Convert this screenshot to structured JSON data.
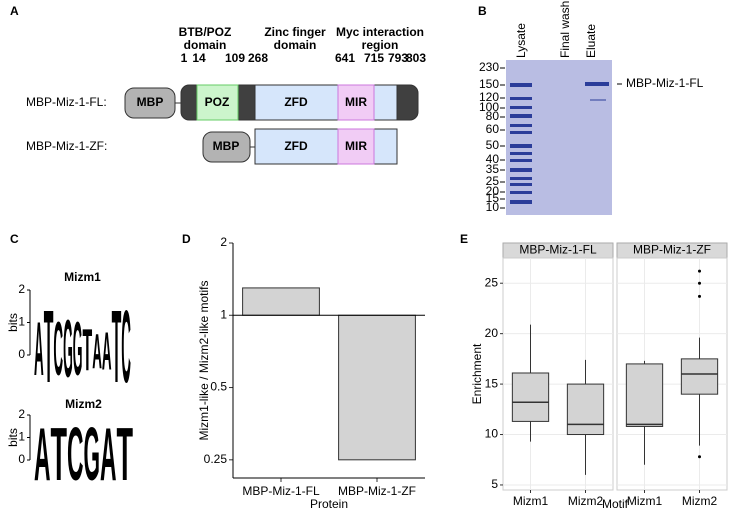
{
  "panel_a": {
    "label": "A",
    "headers": [
      [
        "BTB/POZ",
        "domain"
      ],
      [
        "Zinc finger",
        "domain"
      ],
      [
        "Myc interaction",
        "region"
      ]
    ],
    "residues": [
      1,
      14,
      109,
      268,
      641,
      715,
      793,
      803
    ],
    "constructs": [
      {
        "name": "MBP-Miz-1-FL:",
        "domains": [
          "MBP",
          "POZ",
          "ZFD",
          "MIR"
        ]
      },
      {
        "name": "MBP-Miz-1-ZF:",
        "domains": [
          "MBP",
          "ZFD",
          "MIR"
        ]
      }
    ]
  },
  "panel_b": {
    "label": "B",
    "lanes": [
      "Lysate",
      "Final wash",
      "Eluate"
    ],
    "markers": [
      230,
      150,
      120,
      100,
      80,
      60,
      50,
      40,
      35,
      25,
      20,
      15,
      10
    ],
    "band_label": "MBP-Miz-1-FL"
  },
  "panel_c": {
    "label": "C",
    "y_label": "bits",
    "yticks": [
      0,
      1,
      2
    ],
    "letter_colors": {
      "A": "#00b200",
      "C": "#0000ff",
      "G": "#ffa500",
      "T": "#ff0000"
    },
    "logos": [
      {
        "title": "Mizm1",
        "letters": [
          "A",
          "T",
          "C",
          "G",
          "G",
          "T",
          "A",
          "A",
          "T",
          "C"
        ],
        "heights": [
          1.4,
          1.9,
          1.4,
          1.5,
          1.4,
          1.1,
          0.9,
          1.0,
          1.9,
          1.9
        ]
      },
      {
        "title": "Mizm2",
        "letters": [
          "A",
          "T",
          "C",
          "G",
          "A",
          "T"
        ],
        "heights": [
          2,
          2,
          2,
          2,
          2,
          2
        ]
      }
    ]
  },
  "chart_data": [
    {
      "type": "bar",
      "label": "D",
      "categories": [
        "MBP-Miz-1-FL",
        "MBP-Miz-1-ZF"
      ],
      "values": [
        1.3,
        0.25
      ],
      "color": "#d3d3d3",
      "log_scale": true,
      "bar_base": 1,
      "ylim": [
        0.21,
        2
      ],
      "yticks": [
        0.25,
        0.5,
        1,
        2
      ],
      "x_label": "Protein",
      "y_label": "Mizm1-like / Mizm2-like motifs"
    },
    {
      "type": "box",
      "label": "E",
      "categories": [
        "Mizm1",
        "Mizm2"
      ],
      "color": "#d3d3d3",
      "grid": true,
      "ylim": [
        4.5,
        27.5
      ],
      "yticks": [
        5,
        10,
        15,
        20,
        25
      ],
      "x_label": "Motif",
      "y_label": "Enrichment",
      "facets": [
        {
          "name": "MBP-Miz-1-FL",
          "boxes": [
            {
              "min": 9.3,
              "q1": 11.3,
              "median": 13.2,
              "q3": 16.1,
              "max": 20.9,
              "outliers": []
            },
            {
              "min": 6,
              "q1": 10,
              "median": 11,
              "q3": 15,
              "max": 17.4,
              "outliers": []
            }
          ]
        },
        {
          "name": "MBP-Miz-1-ZF",
          "boxes": [
            {
              "min": 7,
              "q1": 10.8,
              "median": 11,
              "q3": 17,
              "max": 17.3,
              "outliers": []
            },
            {
              "min": 8.9,
              "q1": 14,
              "median": 16,
              "q3": 17.5,
              "max": 19.6,
              "outliers": [
                7.8,
                23.7,
                25,
                26.2
              ]
            }
          ]
        }
      ]
    }
  ]
}
